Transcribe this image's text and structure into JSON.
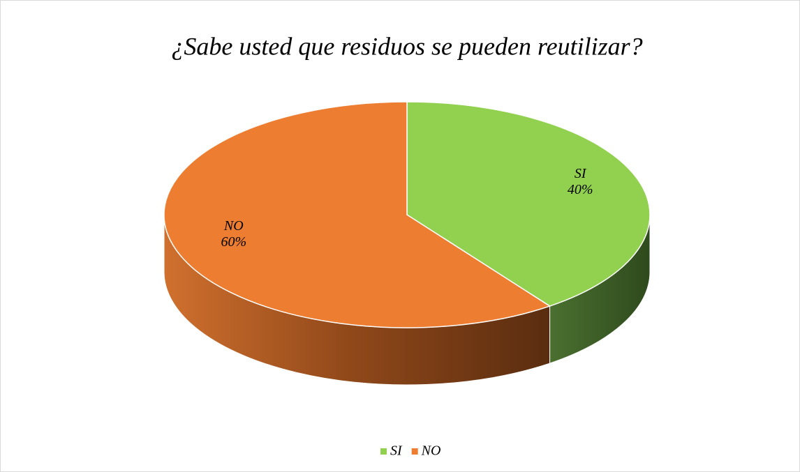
{
  "chart_data": {
    "type": "pie",
    "title": "¿Sabe usted que residuos se pueden reutilizar?",
    "categories": [
      "SI",
      "NO"
    ],
    "values": [
      40,
      60
    ],
    "value_labels": [
      "40%",
      "60%"
    ],
    "colors": [
      "#92d050",
      "#ed7d31"
    ],
    "legend": "bottom"
  }
}
